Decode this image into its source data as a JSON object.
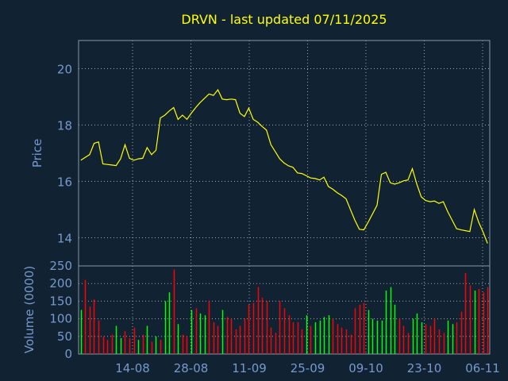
{
  "chart_data": [
    {
      "type": "line",
      "title": "DRVN - last updated 07/11/2025",
      "ylabel": "Price",
      "ylim": [
        13,
        21
      ],
      "yticks": [
        14,
        16,
        18,
        20
      ],
      "grid": true,
      "series": [
        {
          "color": "#ffff00",
          "values": [
            16.75,
            16.85,
            16.95,
            17.35,
            17.4,
            16.62,
            16.6,
            16.58,
            16.56,
            16.8,
            17.3,
            16.82,
            16.75,
            16.8,
            16.82,
            17.2,
            16.95,
            17.1,
            18.25,
            18.35,
            18.5,
            18.62,
            18.2,
            18.35,
            18.2,
            18.42,
            18.62,
            18.8,
            18.95,
            19.1,
            19.05,
            19.25,
            18.92,
            18.9,
            18.92,
            18.9,
            18.42,
            18.3,
            18.6,
            18.2,
            18.1,
            17.95,
            17.82,
            17.3,
            17.05,
            16.8,
            16.65,
            16.55,
            16.5,
            16.3,
            16.28,
            16.2,
            16.12,
            16.1,
            16.05,
            16.15,
            15.82,
            15.72,
            15.6,
            15.5,
            15.38,
            15.0,
            14.62,
            14.3,
            14.28,
            14.55,
            14.85,
            15.15,
            16.25,
            16.32,
            15.95,
            15.9,
            15.95,
            16.02,
            16.05,
            16.45,
            15.9,
            15.45,
            15.32,
            15.28,
            15.3,
            15.22,
            15.28,
            14.92,
            14.62,
            14.32,
            14.28,
            14.25,
            14.22,
            15.0,
            14.55,
            14.2,
            13.8
          ]
        }
      ]
    },
    {
      "type": "bar",
      "ylabel": "Volume (0000)",
      "ylim": [
        0,
        250
      ],
      "yticks": [
        0,
        50,
        100,
        150,
        200,
        250
      ],
      "grid": true,
      "x_tick_labels": [
        "14-08",
        "28-08",
        "11-09",
        "25-09",
        "09-10",
        "23-10",
        "06-11"
      ],
      "up_color": "#00ff00",
      "down_color": "#ff0000",
      "values": [
        125,
        210,
        135,
        155,
        95,
        50,
        40,
        55,
        80,
        45,
        65,
        45,
        75,
        40,
        55,
        80,
        35,
        50,
        40,
        150,
        175,
        240,
        85,
        55,
        50,
        125,
        130,
        115,
        110,
        150,
        90,
        80,
        125,
        105,
        100,
        70,
        80,
        100,
        140,
        145,
        190,
        160,
        150,
        75,
        60,
        150,
        130,
        110,
        90,
        90,
        70,
        110,
        80,
        90,
        95,
        105,
        110,
        100,
        85,
        75,
        70,
        55,
        130,
        140,
        145,
        125,
        100,
        95,
        95,
        180,
        190,
        140,
        100,
        80,
        60,
        100,
        115,
        90,
        85,
        80,
        100,
        70,
        60,
        95,
        85,
        90,
        120,
        230,
        195,
        180,
        185,
        175,
        190
      ],
      "colors": [
        "up",
        "down",
        "down",
        "down",
        "down",
        "down",
        "down",
        "down",
        "up",
        "up",
        "down",
        "down",
        "down",
        "up",
        "down",
        "up",
        "down",
        "up",
        "down",
        "up",
        "up",
        "down",
        "up",
        "down",
        "down",
        "up",
        "down",
        "up",
        "up",
        "down",
        "down",
        "down",
        "up",
        "down",
        "down",
        "down",
        "down",
        "down",
        "down",
        "down",
        "down",
        "down",
        "down",
        "down",
        "down",
        "down",
        "down",
        "down",
        "down",
        "down",
        "down",
        "up",
        "down",
        "up",
        "up",
        "up",
        "up",
        "down",
        "down",
        "down",
        "down",
        "down",
        "down",
        "down",
        "down",
        "up",
        "up",
        "up",
        "up",
        "up",
        "up",
        "up",
        "down",
        "down",
        "down",
        "up",
        "up",
        "up",
        "down",
        "down",
        "down",
        "down",
        "down",
        "up",
        "up",
        "down",
        "down",
        "down",
        "down",
        "up",
        "down",
        "down",
        "down"
      ]
    }
  ]
}
